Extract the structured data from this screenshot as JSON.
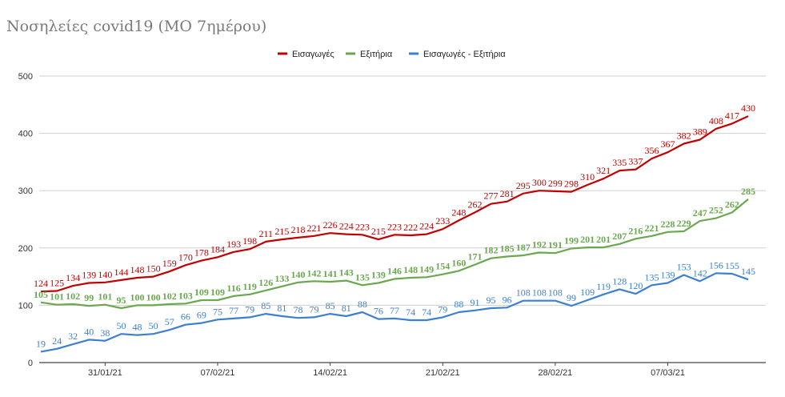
{
  "chart_data": {
    "type": "line",
    "title": "Νοσηλείες covid19 (ΜΟ 7ημέρου)",
    "xlabel": "",
    "ylabel": "",
    "ylim": [
      0,
      500
    ],
    "yticks": [
      0,
      100,
      200,
      300,
      400,
      500
    ],
    "grid": true,
    "legend_position": "top-center",
    "xtick_labels": [
      "31/01/21",
      "07/02/21",
      "14/02/21",
      "21/02/21",
      "28/02/21",
      "07/03/21"
    ],
    "series": [
      {
        "name": "Εισαγωγές",
        "color": "#c00000",
        "values": [
          124,
          125,
          134,
          139,
          140,
          144,
          148,
          150,
          159,
          170,
          178,
          184,
          193,
          198,
          211,
          215,
          218,
          221,
          226,
          224,
          223,
          215,
          223,
          222,
          224,
          233,
          248,
          262,
          277,
          281,
          295,
          300,
          299,
          298,
          310,
          321,
          335,
          337,
          356,
          367,
          382,
          389,
          408,
          417,
          430
        ]
      },
      {
        "name": "Εξιτήρια",
        "color": "#6aa84f",
        "values": [
          105,
          101,
          102,
          99,
          101,
          95,
          100,
          100,
          102,
          103,
          109,
          109,
          116,
          119,
          126,
          133,
          140,
          142,
          141,
          143,
          135,
          139,
          146,
          148,
          149,
          154,
          160,
          171,
          182,
          185,
          187,
          192,
          191,
          199,
          201,
          201,
          207,
          216,
          221,
          228,
          229,
          247,
          252,
          262,
          285
        ]
      },
      {
        "name": "Εισαγωγές - Εξιτήρια",
        "color": "#3d7fd0",
        "values": [
          19,
          24,
          32,
          40,
          38,
          50,
          48,
          50,
          57,
          66,
          69,
          75,
          77,
          79,
          85,
          81,
          78,
          79,
          85,
          81,
          88,
          76,
          77,
          74,
          74,
          79,
          88,
          91,
          95,
          96,
          108,
          108,
          108,
          99,
          109,
          119,
          128,
          120,
          135,
          139,
          153,
          142,
          156,
          155,
          145
        ]
      }
    ]
  }
}
